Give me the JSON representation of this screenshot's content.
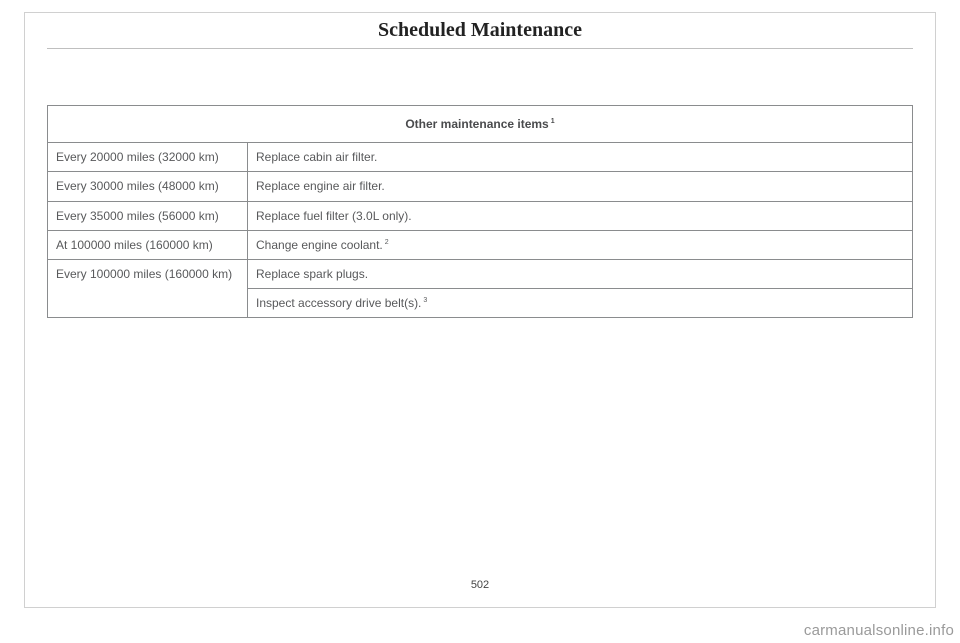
{
  "page": {
    "title": "Scheduled Maintenance",
    "number": "502",
    "watermark": "carmanualsonline.info"
  },
  "table": {
    "header": "Other maintenance items",
    "header_sup": "1",
    "rows": [
      {
        "interval": "Every 20000 miles (32000 km)",
        "task": "Replace cabin air filter.",
        "sup": ""
      },
      {
        "interval": "Every 30000 miles (48000 km)",
        "task": "Replace engine air filter.",
        "sup": ""
      },
      {
        "interval": "Every 35000 miles (56000 km)",
        "task": "Replace fuel filter (3.0L only).",
        "sup": ""
      },
      {
        "interval": "At 100000 miles (160000 km)",
        "task": "Change engine coolant.",
        "sup": "2"
      },
      {
        "interval": "Every 100000 miles (160000 km)",
        "task": "Replace spark plugs.",
        "sup": ""
      },
      {
        "interval": "",
        "task": "Inspect accessory drive belt(s).",
        "sup": "3"
      }
    ]
  }
}
